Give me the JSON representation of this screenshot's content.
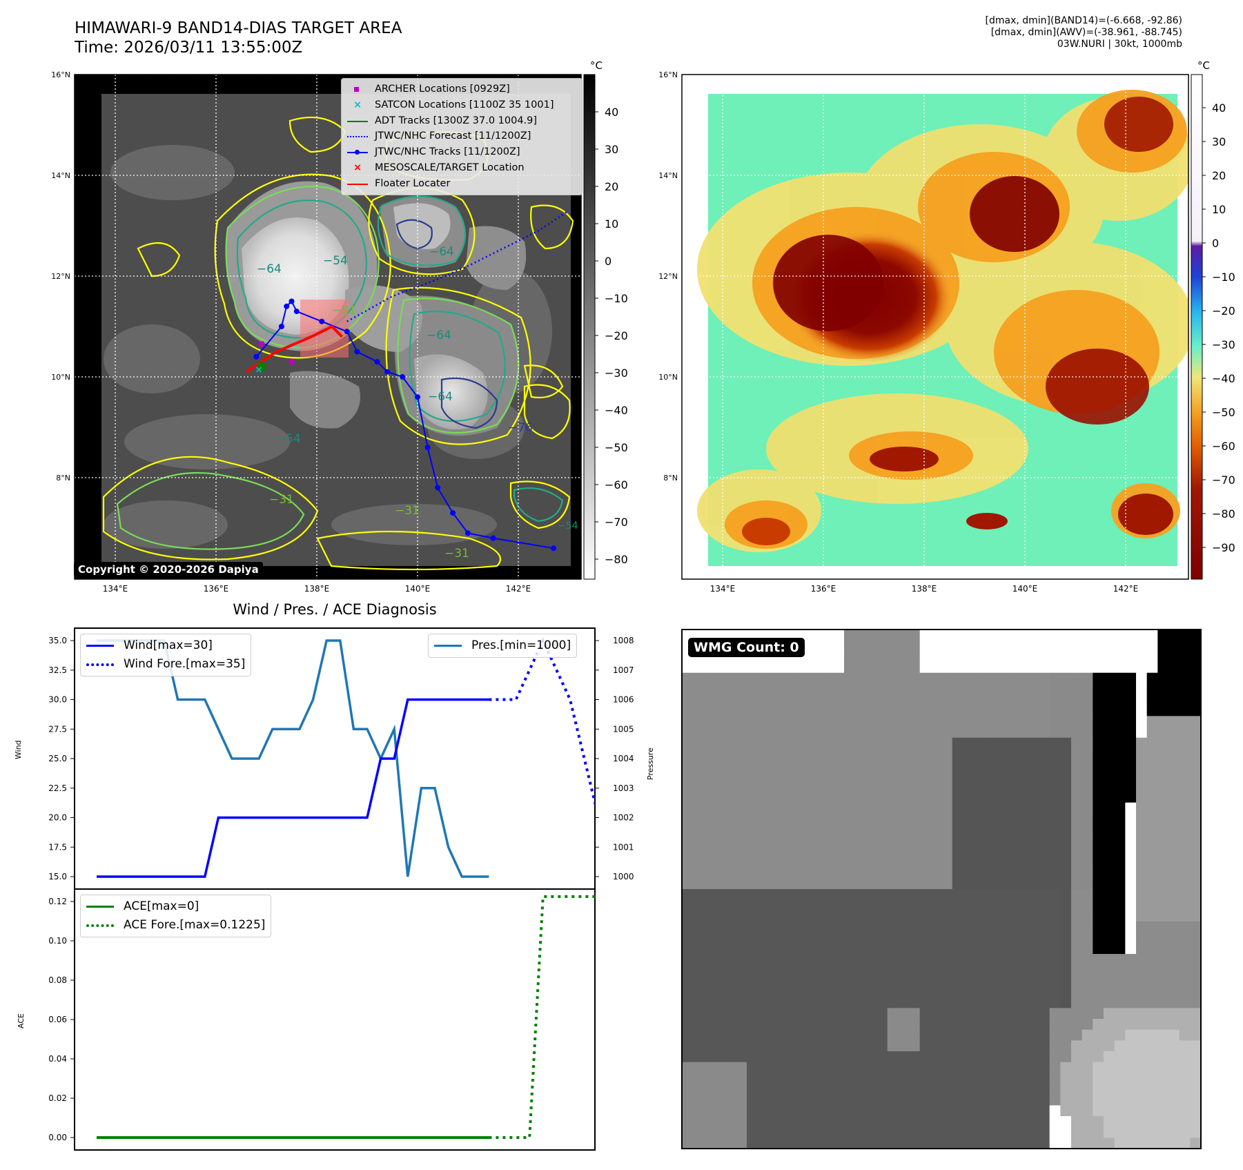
{
  "header": {
    "title": "HIMAWARI-9 BAND14-DIAS TARGET AREA",
    "time": "Time: 2026/03/11 13:55:00Z",
    "stats_band14": "[dmax, dmin](BAND14)=(-6.668, -92.86)",
    "stats_awv": "[dmax, dmin](AWV)=(-38.961, -88.745)",
    "storm": "03W.NURI | 30kt, 1000mb"
  },
  "colors": {
    "wind": "#0000ff",
    "pressure": "#1f77b4",
    "ace": "#008000",
    "adt": "#008000",
    "archer": "#bf00bf",
    "satcon": "#00bfbf",
    "floater": "#ff0000",
    "mesoscale": "#ff0000"
  },
  "ir_map": {
    "lat_labels": [
      "16°N",
      "14°N",
      "12°N",
      "10°N",
      "8°N"
    ],
    "lon_labels": [
      "134°E",
      "136°E",
      "138°E",
      "140°E",
      "142°E"
    ],
    "colorbar_unit": "°C",
    "colorbar_ticks": [
      "40",
      "30",
      "20",
      "10",
      "0",
      "−10",
      "−20",
      "−30",
      "−40",
      "−50",
      "−60",
      "−70",
      "−80"
    ],
    "contour_labels": [
      "−64",
      "−54",
      "−64",
      "−64",
      "−64",
      "−76",
      "−31",
      "−31",
      "−54",
      "−31",
      "−31",
      "−54"
    ],
    "legend": [
      {
        "label": "ARCHER Locations [0929Z]",
        "marker": "square"
      },
      {
        "label": "SATCON Locations [1100Z 35 1001]",
        "marker": "x"
      },
      {
        "label": "ADT Tracks [1300Z 37.0 1004.9]",
        "marker": "line"
      },
      {
        "label": "JTWC/NHC Forecast [11/1200Z]",
        "marker": "dotted"
      },
      {
        "label": "JTWC/NHC Tracks [11/1200Z]",
        "marker": "line-dot"
      },
      {
        "label": "MESOSCALE/TARGET Location",
        "marker": "x"
      },
      {
        "label": "Floater Locater",
        "marker": "line"
      }
    ],
    "copyright": "Copyright © 2020-2026 Dapiya",
    "jtwc_track": [
      [
        142.7,
        6.6
      ],
      [
        141.5,
        6.8
      ],
      [
        141.0,
        6.9
      ],
      [
        140.7,
        7.3
      ],
      [
        140.4,
        7.8
      ],
      [
        140.2,
        8.6
      ],
      [
        140.0,
        9.6
      ],
      [
        139.7,
        10.0
      ],
      [
        139.4,
        10.1
      ],
      [
        139.2,
        10.3
      ],
      [
        138.8,
        10.5
      ],
      [
        138.6,
        10.9
      ],
      [
        138.1,
        11.1
      ],
      [
        137.6,
        11.3
      ],
      [
        137.5,
        11.5
      ],
      [
        137.4,
        11.4
      ],
      [
        137.3,
        11.0
      ],
      [
        136.8,
        10.4
      ]
    ],
    "forecast_track": [
      [
        138.6,
        11.1
      ],
      [
        139.5,
        11.6
      ],
      [
        140.3,
        11.9
      ],
      [
        141.0,
        12.2
      ],
      [
        141.8,
        12.6
      ],
      [
        142.4,
        12.9
      ],
      [
        143.0,
        13.3
      ]
    ],
    "floater_track": [
      [
        136.6,
        10.1
      ],
      [
        137.2,
        10.5
      ],
      [
        137.9,
        10.8
      ],
      [
        138.3,
        11.0
      ],
      [
        138.5,
        10.8
      ]
    ]
  },
  "awv_map": {
    "lat_labels": [
      "16°N",
      "14°N",
      "12°N",
      "10°N",
      "8°N"
    ],
    "lon_labels": [
      "134°E",
      "136°E",
      "138°E",
      "140°E",
      "142°E"
    ],
    "colorbar_unit": "°C",
    "colorbar_ticks": [
      "40",
      "30",
      "20",
      "10",
      "0",
      "−10",
      "−20",
      "−30",
      "−40",
      "−50",
      "−60",
      "−70",
      "−80",
      "−90"
    ]
  },
  "diagnosis": {
    "title": "Wind / Pres. / ACE Diagnosis",
    "wind_ylabel": "Wind",
    "pressure_ylabel": "Pressure",
    "ace_ylabel": "ACE",
    "wind_legend": [
      "Wind[max=30]",
      "Wind Fore.[max=35]"
    ],
    "pressure_legend": "Pres.[min=1000]",
    "ace_legend": [
      "ACE[max=0]",
      "ACE Fore.[max=0.1225]"
    ],
    "wind_ticks": [
      "35.0",
      "32.5",
      "30.0",
      "27.5",
      "25.0",
      "22.5",
      "20.0",
      "17.5",
      "15.0"
    ],
    "pressure_ticks": [
      "1008",
      "1007",
      "1006",
      "1005",
      "1004",
      "1003",
      "1002",
      "1001",
      "1000"
    ],
    "ace_ticks": [
      "0.12",
      "0.10",
      "0.08",
      "0.06",
      "0.04",
      "0.02",
      "0.00"
    ]
  },
  "chart_data": [
    {
      "type": "line",
      "title": "Wind / Pres. / ACE Diagnosis",
      "xlabel": "",
      "ylabel": "Wind",
      "ylim": [
        14.2,
        36.0
      ],
      "x": [
        0,
        1,
        2,
        3,
        4,
        5,
        6,
        7,
        8,
        9,
        10,
        11,
        12,
        13,
        14,
        15,
        16,
        17,
        18,
        19,
        20,
        21,
        22,
        23,
        24,
        25,
        26,
        27,
        28,
        29,
        30,
        31,
        32,
        33,
        34,
        35,
        36,
        37,
        38
      ],
      "series": [
        {
          "name": "Wind[max=30]",
          "x": [
            0,
            1,
            2,
            3,
            4,
            5,
            6,
            7,
            8,
            9,
            10,
            11,
            12,
            13,
            14,
            15,
            16,
            17,
            18,
            19,
            20,
            21,
            22,
            23,
            24,
            25,
            26,
            27,
            28,
            29
          ],
          "values": [
            15,
            15,
            15,
            15,
            15,
            15,
            15,
            15,
            15,
            20,
            20,
            20,
            20,
            20,
            20,
            20,
            20,
            20,
            20,
            20,
            20,
            25,
            25,
            30,
            30,
            30,
            30,
            30,
            30,
            30
          ]
        },
        {
          "name": "Wind Fore.[max=35]",
          "x": [
            29,
            31,
            33,
            35,
            37
          ],
          "values": [
            30,
            30,
            35,
            30,
            20.5
          ]
        }
      ]
    },
    {
      "type": "line",
      "ylabel": "Pressure",
      "ylim": [
        999.6,
        1008.4
      ],
      "series": [
        {
          "name": "Pres.[min=1000]",
          "x": [
            0,
            1,
            2,
            3,
            4,
            5,
            6,
            7,
            8,
            9,
            10,
            11,
            12,
            13,
            14,
            15,
            16,
            17,
            18,
            19,
            20,
            21,
            22,
            23,
            24,
            25,
            26,
            27,
            28,
            29
          ],
          "values": [
            1008,
            1008,
            1008,
            1008,
            1008,
            1008,
            1006,
            1006,
            1006,
            1005,
            1004,
            1004,
            1004,
            1005,
            1005,
            1005,
            1006,
            1008,
            1008,
            1005,
            1005,
            1004,
            1005,
            1000,
            1003,
            1003,
            1001,
            1000,
            1000,
            1000
          ]
        }
      ]
    },
    {
      "type": "line",
      "ylabel": "ACE",
      "ylim": [
        -0.003,
        0.126
      ],
      "series": [
        {
          "name": "ACE[max=0]",
          "x": [
            0,
            29
          ],
          "values": [
            0,
            0
          ]
        },
        {
          "name": "ACE Fore.[max=0.1225]",
          "x": [
            29,
            32,
            33,
            35,
            37
          ],
          "values": [
            0,
            0,
            0.1225,
            0.1225,
            0.1225
          ]
        }
      ]
    }
  ],
  "wmg": {
    "badge": "WMG Count: 0"
  }
}
